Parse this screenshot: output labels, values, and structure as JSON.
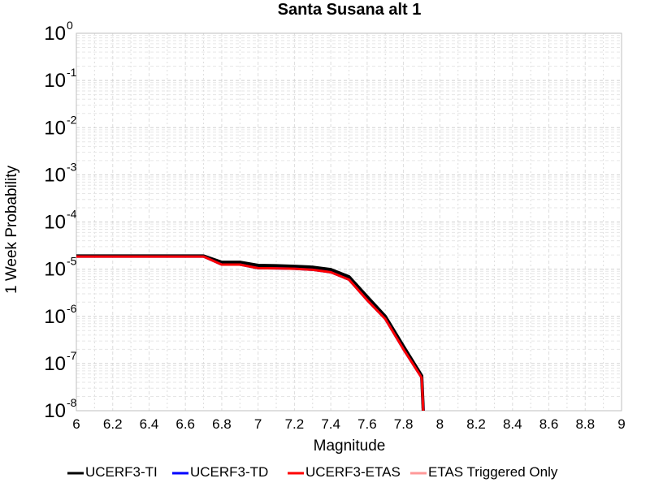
{
  "chart_data": {
    "type": "line",
    "title": "Santa Susana alt 1",
    "xlabel": "Magnitude",
    "ylabel": "1 Week Probability",
    "xlim": [
      6,
      9
    ],
    "ylim": [
      1e-08,
      1
    ],
    "yscale": "log",
    "grid": true,
    "legend_position": "bottom",
    "x_ticks": [
      "6",
      "6.2",
      "6.4",
      "6.6",
      "6.8",
      "7",
      "7.2",
      "7.4",
      "7.6",
      "7.8",
      "8",
      "8.2",
      "8.4",
      "8.6",
      "8.8",
      "9"
    ],
    "y_ticks": [
      {
        "value": 1,
        "base": "10",
        "exp": "0"
      },
      {
        "value": 0.1,
        "base": "10",
        "exp": "-1"
      },
      {
        "value": 0.01,
        "base": "10",
        "exp": "-2"
      },
      {
        "value": 0.001,
        "base": "10",
        "exp": "-3"
      },
      {
        "value": 0.0001,
        "base": "10",
        "exp": "-4"
      },
      {
        "value": 1e-05,
        "base": "10",
        "exp": "-5"
      },
      {
        "value": 1e-06,
        "base": "10",
        "exp": "-6"
      },
      {
        "value": 1e-07,
        "base": "10",
        "exp": "-7"
      },
      {
        "value": 1e-08,
        "base": "10",
        "exp": "-8"
      }
    ],
    "series": [
      {
        "name": "UCERF3-TI",
        "color": "#000000",
        "width": 4,
        "x": [
          6.0,
          6.1,
          6.2,
          6.3,
          6.4,
          6.5,
          6.6,
          6.7,
          6.8,
          6.9,
          7.0,
          7.1,
          7.2,
          7.3,
          7.4,
          7.5,
          7.6,
          7.7,
          7.8,
          7.9,
          7.91
        ],
        "y": [
          1.9e-05,
          1.9e-05,
          1.9e-05,
          1.9e-05,
          1.9e-05,
          1.9e-05,
          1.9e-05,
          1.9e-05,
          1.4e-05,
          1.4e-05,
          1.2e-05,
          1.18e-05,
          1.15e-05,
          1.1e-05,
          9.8e-06,
          6.9e-06,
          2.6e-06,
          1e-06,
          2.3e-07,
          5.5e-08,
          8e-09
        ]
      },
      {
        "name": "UCERF3-TD",
        "color": "#0000ff",
        "width": 3,
        "x": [
          6.0,
          6.1,
          6.2,
          6.3,
          6.4,
          6.5,
          6.6,
          6.7,
          6.8,
          6.9,
          7.0,
          7.1,
          7.2,
          7.3,
          7.4,
          7.5,
          7.6,
          7.7,
          7.8,
          7.9,
          7.91
        ],
        "y": [
          1.85e-05,
          1.85e-05,
          1.85e-05,
          1.85e-05,
          1.85e-05,
          1.85e-05,
          1.85e-05,
          1.85e-05,
          1.25e-05,
          1.25e-05,
          1.05e-05,
          1.04e-05,
          1.02e-05,
          9.7e-06,
          8.6e-06,
          6e-06,
          2.2e-06,
          8.8e-07,
          2e-07,
          5e-08,
          8e-09
        ]
      },
      {
        "name": "UCERF3-ETAS",
        "color": "#ff0000",
        "width": 3,
        "x": [
          6.0,
          6.1,
          6.2,
          6.3,
          6.4,
          6.5,
          6.6,
          6.7,
          6.8,
          6.9,
          7.0,
          7.1,
          7.2,
          7.3,
          7.4,
          7.5,
          7.6,
          7.7,
          7.8,
          7.9,
          7.91
        ],
        "y": [
          1.85e-05,
          1.85e-05,
          1.85e-05,
          1.85e-05,
          1.85e-05,
          1.85e-05,
          1.85e-05,
          1.85e-05,
          1.25e-05,
          1.25e-05,
          1.05e-05,
          1.04e-05,
          1.02e-05,
          9.7e-06,
          8.6e-06,
          6e-06,
          2.2e-06,
          8.8e-07,
          2e-07,
          5e-08,
          8e-09
        ]
      },
      {
        "name": "ETAS Triggered Only",
        "color": "#ff9999",
        "width": 2,
        "x": [],
        "y": []
      }
    ]
  }
}
